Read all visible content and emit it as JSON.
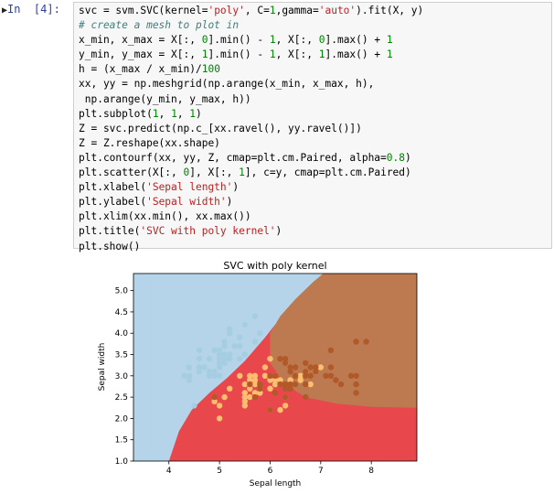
{
  "cell": {
    "prompt": "In  [4]:",
    "code_lines": [
      "svc = svm.SVC(kernel='poly', C=1,gamma='auto').fit(X, y)",
      "# create a mesh to plot in",
      "x_min, x_max = X[:, 0].min() - 1, X[:, 0].max() + 1",
      "y_min, y_max = X[:, 1].min() - 1, X[:, 1].max() + 1",
      "h = (x_max / x_min)/100",
      "xx, yy = np.meshgrid(np.arange(x_min, x_max, h),",
      " np.arange(y_min, y_max, h))",
      "plt.subplot(1, 1, 1)",
      "Z = svc.predict(np.c_[xx.ravel(), yy.ravel()])",
      "Z = Z.reshape(xx.shape)",
      "plt.contourf(xx, yy, Z, cmap=plt.cm.Paired, alpha=0.8)",
      "plt.scatter(X[:, 0], X[:, 1], c=y, cmap=plt.cm.Paired)",
      "plt.xlabel('Sepal length')",
      "plt.ylabel('Sepal width')",
      "plt.xlim(xx.min(), xx.max())",
      "plt.title('SVC with poly kernel')",
      "plt.show()"
    ]
  },
  "chart_data": {
    "type": "scatter",
    "title": "SVC with poly kernel",
    "xlabel": "Sepal length",
    "ylabel": "Sepal width",
    "xlim": [
      3.3,
      8.9
    ],
    "ylim": [
      1.0,
      5.4
    ],
    "xticks": [
      "4",
      "5",
      "6",
      "7",
      "8"
    ],
    "yticks": [
      "1.0",
      "1.5",
      "2.0",
      "2.5",
      "3.0",
      "3.5",
      "4.0",
      "4.5",
      "5.0"
    ],
    "region_colors": [
      "#b5d4e9",
      "#e8484c",
      "#bd7a51"
    ],
    "series": [
      {
        "color": "#a6cee3",
        "points": [
          [
            4.3,
            3.0
          ],
          [
            4.4,
            2.9
          ],
          [
            4.4,
            3.0
          ],
          [
            4.4,
            3.2
          ],
          [
            4.5,
            2.3
          ],
          [
            4.6,
            3.1
          ],
          [
            4.6,
            3.4
          ],
          [
            4.6,
            3.6
          ],
          [
            4.6,
            3.2
          ],
          [
            4.7,
            3.2
          ],
          [
            4.8,
            3.4
          ],
          [
            4.8,
            3.0
          ],
          [
            4.8,
            3.1
          ],
          [
            4.9,
            3.0
          ],
          [
            4.9,
            3.1
          ],
          [
            4.9,
            3.6
          ],
          [
            5.0,
            3.6
          ],
          [
            5.0,
            3.4
          ],
          [
            5.0,
            3.0
          ],
          [
            5.0,
            3.2
          ],
          [
            5.0,
            3.5
          ],
          [
            5.0,
            3.3
          ],
          [
            5.1,
            3.5
          ],
          [
            5.1,
            3.8
          ],
          [
            5.1,
            3.7
          ],
          [
            5.1,
            3.3
          ],
          [
            5.1,
            3.4
          ],
          [
            5.2,
            3.5
          ],
          [
            5.2,
            3.4
          ],
          [
            5.2,
            4.1
          ],
          [
            5.3,
            3.7
          ],
          [
            5.4,
            3.9
          ],
          [
            5.4,
            3.7
          ],
          [
            5.4,
            3.4
          ],
          [
            5.5,
            4.2
          ],
          [
            5.5,
            3.5
          ],
          [
            5.7,
            4.4
          ],
          [
            5.7,
            3.8
          ],
          [
            5.8,
            4.0
          ],
          [
            5.2,
            4.0
          ]
        ]
      },
      {
        "color": "#fdbf6f",
        "points": [
          [
            4.9,
            2.4
          ],
          [
            5.0,
            2.0
          ],
          [
            5.0,
            2.3
          ],
          [
            5.1,
            2.5
          ],
          [
            5.2,
            2.7
          ],
          [
            5.4,
            3.0
          ],
          [
            5.5,
            2.3
          ],
          [
            5.5,
            2.4
          ],
          [
            5.5,
            2.5
          ],
          [
            5.5,
            2.6
          ],
          [
            5.6,
            2.9
          ],
          [
            5.6,
            3.0
          ],
          [
            5.6,
            2.5
          ],
          [
            5.6,
            2.7
          ],
          [
            5.7,
            2.8
          ],
          [
            5.7,
            2.6
          ],
          [
            5.7,
            3.0
          ],
          [
            5.7,
            2.9
          ],
          [
            5.8,
            2.7
          ],
          [
            5.8,
            2.6
          ],
          [
            5.9,
            3.0
          ],
          [
            5.9,
            3.2
          ],
          [
            6.0,
            2.2
          ],
          [
            6.0,
            2.9
          ],
          [
            6.0,
            2.7
          ],
          [
            6.0,
            3.4
          ],
          [
            6.1,
            2.9
          ],
          [
            6.1,
            2.8
          ],
          [
            6.1,
            3.0
          ],
          [
            6.2,
            2.2
          ],
          [
            6.2,
            2.9
          ],
          [
            6.3,
            2.3
          ],
          [
            6.3,
            2.5
          ],
          [
            6.3,
            3.3
          ],
          [
            6.4,
            2.9
          ],
          [
            6.4,
            3.2
          ],
          [
            6.5,
            2.8
          ],
          [
            6.6,
            2.9
          ],
          [
            6.6,
            3.0
          ],
          [
            6.7,
            3.1
          ],
          [
            6.7,
            3.0
          ],
          [
            6.8,
            2.8
          ],
          [
            6.9,
            3.1
          ],
          [
            7.0,
            3.2
          ],
          [
            5.6,
            2.8
          ],
          [
            5.5,
            2.8
          ]
        ]
      },
      {
        "color": "#b15928",
        "points": [
          [
            4.9,
            2.5
          ],
          [
            5.6,
            2.8
          ],
          [
            5.7,
            2.5
          ],
          [
            5.8,
            2.7
          ],
          [
            5.8,
            2.8
          ],
          [
            6.0,
            2.2
          ],
          [
            6.0,
            3.0
          ],
          [
            6.1,
            2.6
          ],
          [
            6.1,
            3.0
          ],
          [
            6.2,
            2.8
          ],
          [
            6.2,
            3.4
          ],
          [
            6.3,
            2.5
          ],
          [
            6.3,
            2.7
          ],
          [
            6.3,
            2.8
          ],
          [
            6.3,
            3.3
          ],
          [
            6.3,
            3.4
          ],
          [
            6.4,
            2.7
          ],
          [
            6.4,
            2.8
          ],
          [
            6.4,
            3.1
          ],
          [
            6.4,
            3.2
          ],
          [
            6.5,
            3.0
          ],
          [
            6.5,
            3.2
          ],
          [
            6.7,
            2.5
          ],
          [
            6.7,
            3.0
          ],
          [
            6.7,
            3.1
          ],
          [
            6.7,
            3.3
          ],
          [
            6.8,
            3.0
          ],
          [
            6.8,
            3.2
          ],
          [
            6.9,
            3.1
          ],
          [
            6.9,
            3.2
          ],
          [
            7.1,
            3.0
          ],
          [
            7.2,
            3.0
          ],
          [
            7.2,
            3.2
          ],
          [
            7.2,
            3.6
          ],
          [
            7.3,
            2.9
          ],
          [
            7.4,
            2.8
          ],
          [
            7.6,
            3.0
          ],
          [
            7.7,
            2.6
          ],
          [
            7.7,
            2.8
          ],
          [
            7.7,
            3.0
          ],
          [
            7.7,
            3.8
          ],
          [
            7.9,
            3.8
          ],
          [
            6.5,
            2.8
          ],
          [
            6.7,
            2.8
          ]
        ]
      }
    ]
  }
}
